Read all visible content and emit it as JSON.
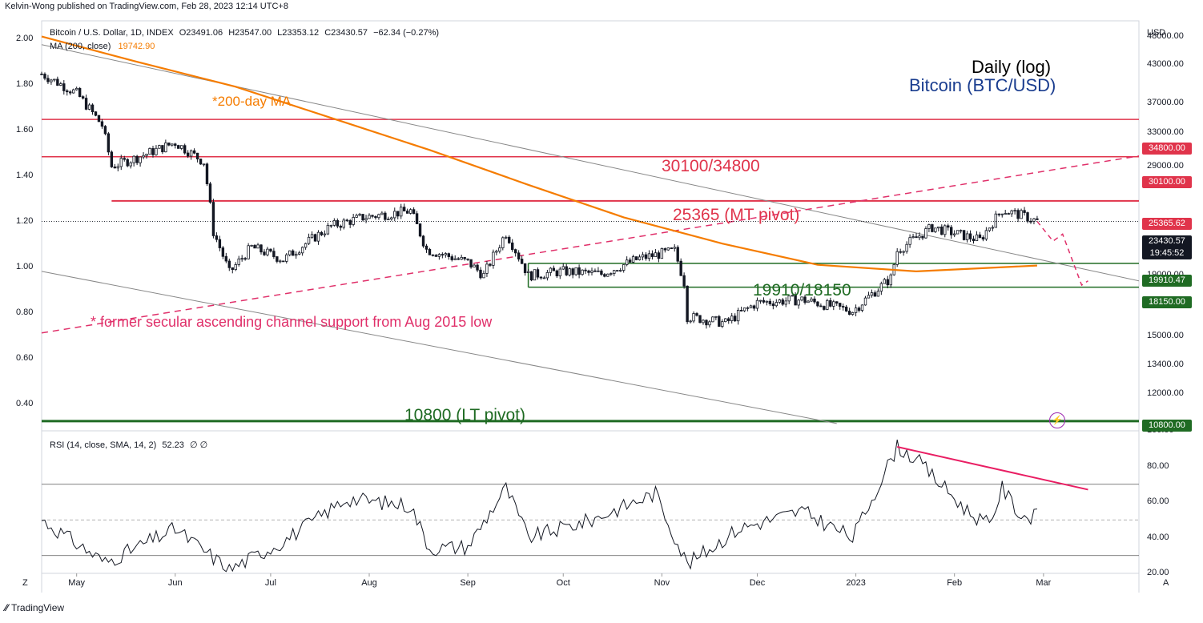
{
  "header": {
    "published": "Kelvin-Wong published on TradingView.com, Feb 28, 2023 12:14 UTC+8"
  },
  "legend": {
    "symbol": "Bitcoin / U.S. Dollar, 1D, INDEX",
    "open": "O23491.06",
    "high": "H23547.00",
    "low": "L23353.12",
    "close": "C23430.57",
    "change": "−62.34 (−0.27%)",
    "ma_label": "MA (200, close)",
    "ma_value": "19742.90",
    "rsi_label": "RSI (14, close, SMA, 14, 2)",
    "rsi_value": "52.23",
    "rsi_extra": "∅ ∅"
  },
  "titles": {
    "timeframe": "Daily (log)",
    "instrument": "Bitcoin (BTC/USD)"
  },
  "annotations": {
    "ma200": "*200-day MA",
    "resistance_zone": "30100/34800",
    "mt_pivot": "25365 (MT pivot)",
    "support_zone": "19910/18150",
    "lt_pivot": "10800 (LT pivot)",
    "channel_note": "* former secular ascending channel support from Aug 2015 low"
  },
  "axes": {
    "currency": "USD",
    "left_ticks": [
      "2.00",
      "1.80",
      "1.60",
      "1.40",
      "1.20",
      "1.00",
      "0.80",
      "0.60",
      "0.40"
    ],
    "right_ticks": [
      "48000.00",
      "43000.00",
      "37000.00",
      "33000.00",
      "29000.00",
      "19000.00",
      "17000.00",
      "15000.00",
      "13400.00",
      "12000.00"
    ],
    "rsi_ticks": [
      "100.00",
      "80.00",
      "60.00",
      "40.00",
      "20.00"
    ],
    "months": [
      "May",
      "Jun",
      "Jul",
      "Aug",
      "Sep",
      "Oct",
      "Nov",
      "Dec",
      "2023",
      "Feb",
      "Mar"
    ]
  },
  "price_tags": {
    "r2": "34800.00",
    "r1": "30100.00",
    "pivot": "25365.62",
    "last": "23430.57",
    "countdown": "19:45:52",
    "s1": "19910.47",
    "s2": "18150.00",
    "lt": "10800.00"
  },
  "controls": {
    "zoom": "Z",
    "auto": "A",
    "brand": "TradingView"
  },
  "colors": {
    "ma": "#f57c00",
    "resistance": "#e0344b",
    "support": "#1f6b23",
    "channel": "#e0306a",
    "divergence": "#e91e63"
  },
  "chart_data": {
    "type": "line",
    "title": "Bitcoin (BTC/USD)",
    "subtitle": "Daily (log)",
    "scale": "log",
    "x_range": [
      "2022-04-20",
      "2023-03-31"
    ],
    "y_range": [
      10400,
      51000
    ],
    "ma_200": {
      "name": "MA (200, close)",
      "dates": [
        "2022-04-20",
        "2022-05-20",
        "2022-06-20",
        "2022-07-20",
        "2022-08-20",
        "2022-09-20",
        "2022-10-20",
        "2022-11-20",
        "2022-12-20",
        "2023-01-20",
        "2023-02-27"
      ],
      "values": [
        48000,
        43500,
        39500,
        35000,
        30900,
        27000,
        23800,
        21500,
        19800,
        19300,
        19743
      ]
    },
    "close": {
      "dates": [
        "2022-04-20",
        "2022-05-01",
        "2022-05-09",
        "2022-05-12",
        "2022-05-20",
        "2022-06-01",
        "2022-06-10",
        "2022-06-13",
        "2022-06-18",
        "2022-06-25",
        "2022-07-05",
        "2022-07-20",
        "2022-07-30",
        "2022-08-14",
        "2022-08-19",
        "2022-09-01",
        "2022-09-06",
        "2022-09-13",
        "2022-09-20",
        "2022-10-01",
        "2022-10-13",
        "2022-10-25",
        "2022-11-05",
        "2022-11-08",
        "2022-11-09",
        "2022-11-21",
        "2022-12-01",
        "2022-12-15",
        "2022-12-31",
        "2023-01-12",
        "2023-01-14",
        "2023-01-25",
        "2023-02-09",
        "2023-02-16",
        "2023-02-23",
        "2023-02-27"
      ],
      "values": [
        41500,
        38500,
        34000,
        29000,
        30000,
        31800,
        29500,
        22500,
        19200,
        21200,
        20200,
        23000,
        23800,
        24400,
        21000,
        20000,
        19000,
        22400,
        19000,
        19300,
        19100,
        20300,
        20900,
        18500,
        16200,
        15800,
        17100,
        17300,
        16550,
        18800,
        20900,
        22900,
        21800,
        24500,
        23900,
        23430
      ]
    },
    "levels": [
      {
        "name": "30100/34800",
        "values": [
          30100,
          34800
        ]
      },
      {
        "name": "25365 (MT pivot)",
        "values": [
          25365.62
        ]
      },
      {
        "name": "19910/18150",
        "values": [
          19910.47,
          18150
        ]
      },
      {
        "name": "10800 (LT pivot)",
        "values": [
          10800
        ]
      }
    ],
    "rsi": {
      "name": "RSI (14, close, SMA, 14, 2)",
      "y_range": [
        20,
        100
      ],
      "bands": [
        30,
        50,
        70
      ],
      "last": 52.23,
      "dates": [
        "2022-04-20",
        "2022-05-10",
        "2022-06-01",
        "2022-06-18",
        "2022-07-05",
        "2022-07-25",
        "2022-08-14",
        "2022-08-20",
        "2022-09-01",
        "2022-09-13",
        "2022-09-20",
        "2022-10-10",
        "2022-10-30",
        "2022-11-09",
        "2022-11-25",
        "2022-12-15",
        "2022-12-31",
        "2023-01-14",
        "2023-01-20",
        "2023-02-05",
        "2023-02-12",
        "2023-02-16",
        "2023-02-22",
        "2023-02-27"
      ],
      "values": [
        50,
        26,
        45,
        22,
        38,
        62,
        58,
        34,
        35,
        68,
        40,
        50,
        65,
        25,
        45,
        55,
        40,
        91,
        84,
        55,
        47,
        68,
        52,
        52
      ]
    }
  }
}
